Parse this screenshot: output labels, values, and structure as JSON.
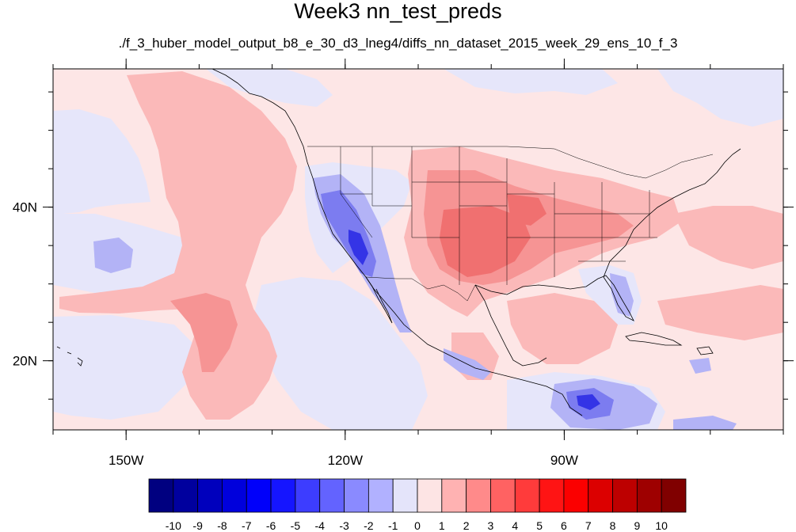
{
  "title": "Week3 nn_test_preds",
  "subtitle": "./f_3_huber_model_output_b8_e_30_d3_lneg4/diffs_nn_dataset_2015_week_29_ens_10_f_3",
  "axes": {
    "lon_range": [
      -160,
      -60
    ],
    "lat_range": [
      11,
      58
    ],
    "x_ticks": [
      {
        "value": -150,
        "label": "150W"
      },
      {
        "value": -120,
        "label": "120W"
      },
      {
        "value": -90,
        "label": "90W"
      }
    ],
    "y_ticks": [
      {
        "value": 40,
        "label": "40N"
      },
      {
        "value": 20,
        "label": "20N"
      }
    ]
  },
  "colorbar": {
    "colors": [
      "#000080",
      "#00009e",
      "#0000bd",
      "#0000dc",
      "#0000fa",
      "#1515ff",
      "#3d3dff",
      "#6363ff",
      "#8a8aff",
      "#b1b1ff",
      "#e4e4fa",
      "#fde4e4",
      "#ffb2b2",
      "#ff8a8a",
      "#ff6262",
      "#ff3b3b",
      "#ff1414",
      "#fb0000",
      "#dc0000",
      "#bd0000",
      "#9e0000",
      "#800000"
    ],
    "labels": [
      "-10",
      "-9",
      "-8",
      "-7",
      "-6",
      "-5",
      "-4",
      "-3",
      "-2",
      "-1",
      "0",
      "1",
      "2",
      "3",
      "4",
      "5",
      "6",
      "7",
      "8",
      "9",
      "10"
    ]
  },
  "field_colors": {
    "background_pos": "#fde6e6",
    "light_pos": "#fbb9b9",
    "mid_pos": "#f69494",
    "strong_pos": "#f07070",
    "light_neg": "#e6e6fa",
    "mid_neg": "#b3b3f6",
    "strong_neg": "#7c7cf0",
    "deep_neg": "#3434e6"
  }
}
